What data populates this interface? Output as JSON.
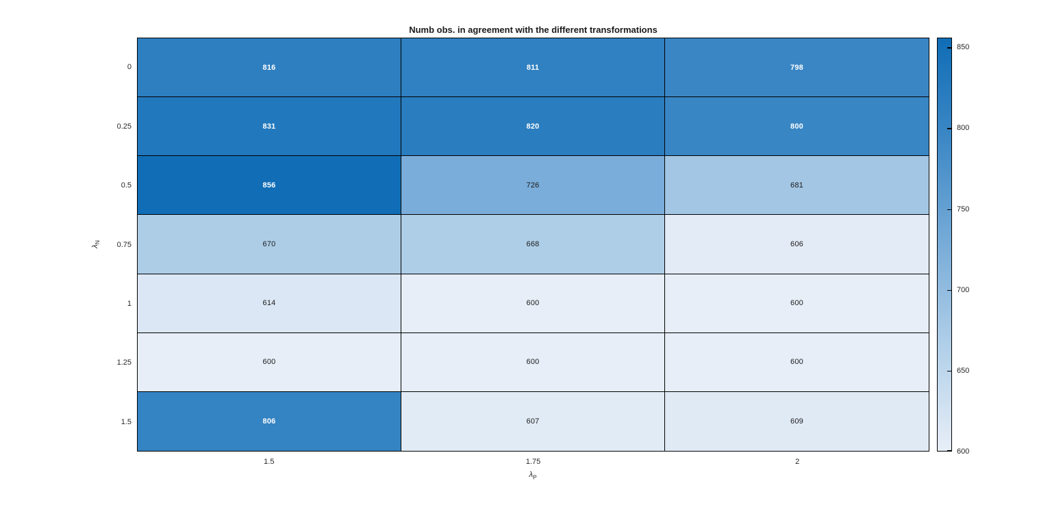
{
  "chart_data": {
    "type": "heatmap",
    "title": "Numb obs. in agreement with the different transformations",
    "xlabel": {
      "base": "λ",
      "sub": "P"
    },
    "ylabel": {
      "base": "λ",
      "sub": "N"
    },
    "x_categories": [
      "1.5",
      "1.75",
      "2"
    ],
    "y_categories": [
      "0",
      "0.25",
      "0.5",
      "0.75",
      "1",
      "1.25",
      "1.5"
    ],
    "values": [
      [
        816,
        811,
        798
      ],
      [
        831,
        820,
        800
      ],
      [
        856,
        726,
        681
      ],
      [
        670,
        668,
        606
      ],
      [
        614,
        600,
        600
      ],
      [
        600,
        600,
        600
      ],
      [
        806,
        607,
        609
      ]
    ],
    "color_scale": {
      "min": 600,
      "max": 856,
      "stops": [
        "#e7eef7",
        "#b2d0e9",
        "#78acd8",
        "#3e89c6",
        "#106db6"
      ],
      "label_color_light": "#ffffff",
      "label_color_dark": "#1a1a1a",
      "light_label_threshold": 760
    },
    "colorbar_ticks": [
      "850",
      "800",
      "750",
      "700",
      "650",
      "600"
    ],
    "grid_line_color": "#000000",
    "legend_position": "right-colorbar",
    "grid": true
  }
}
